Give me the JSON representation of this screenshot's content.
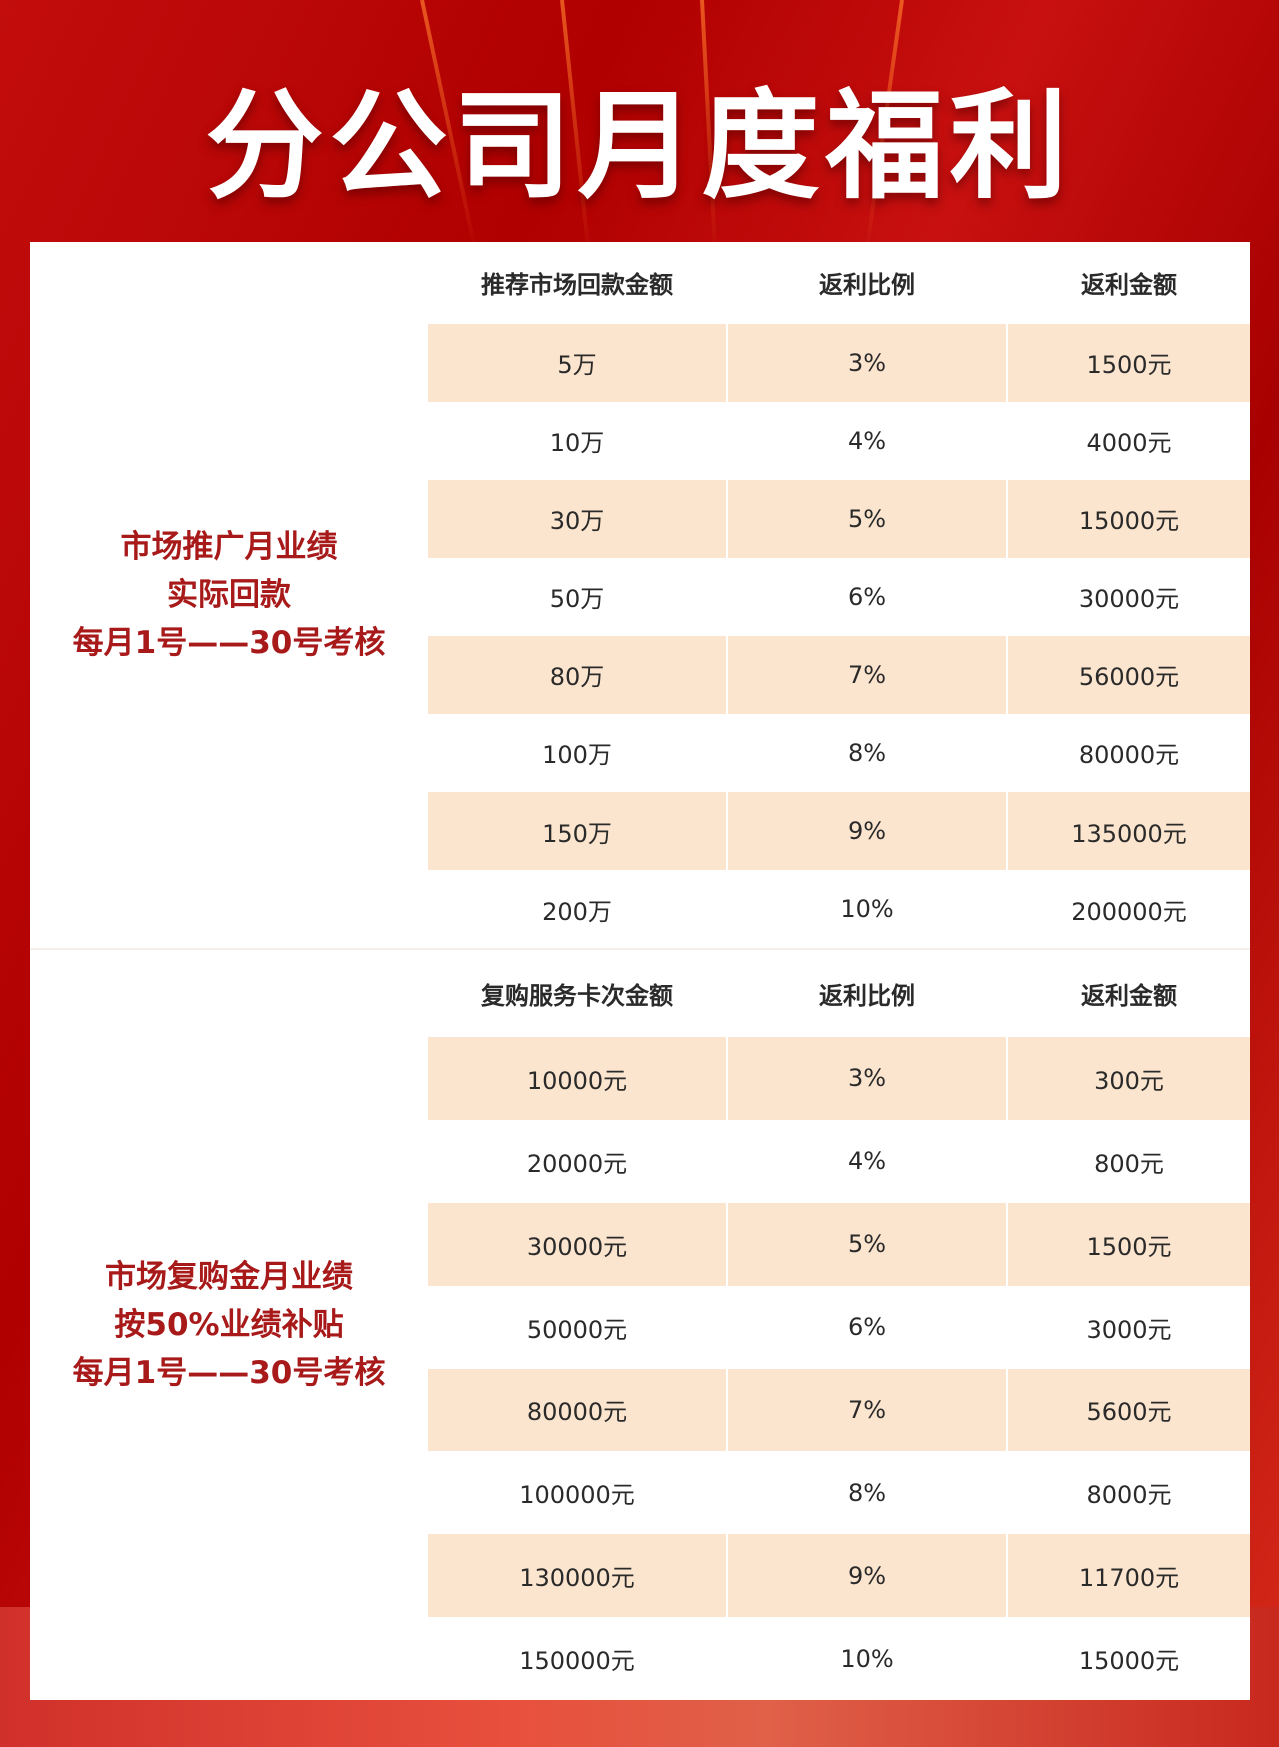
{
  "title": "分公司月度福利",
  "sections": [
    {
      "label_lines": [
        "市场推广月业绩",
        "实际回款",
        "每月1号——30号考核"
      ],
      "headers": [
        "推荐市场回款金额",
        "返利比例",
        "返利金额"
      ],
      "rows": [
        [
          "5万",
          "3%",
          "1500元"
        ],
        [
          "10万",
          "4%",
          "4000元"
        ],
        [
          "30万",
          "5%",
          "15000元"
        ],
        [
          "50万",
          "6%",
          "30000元"
        ],
        [
          "80万",
          "7%",
          "56000元"
        ],
        [
          "100万",
          "8%",
          "80000元"
        ],
        [
          "150万",
          "9%",
          "135000元"
        ],
        [
          "200万",
          "10%",
          "200000元"
        ]
      ]
    },
    {
      "label_lines": [
        "市场复购金月业绩",
        "按50%业绩补贴",
        "每月1号——30号考核"
      ],
      "headers": [
        "复购服务卡次金额",
        "返利比例",
        "返利金额"
      ],
      "rows": [
        [
          "10000元",
          "3%",
          "300元"
        ],
        [
          "20000元",
          "4%",
          "800元"
        ],
        [
          "30000元",
          "5%",
          "1500元"
        ],
        [
          "50000元",
          "6%",
          "3000元"
        ],
        [
          "80000元",
          "7%",
          "5600元"
        ],
        [
          "100000元",
          "8%",
          "8000元"
        ],
        [
          "130000元",
          "9%",
          "11700元"
        ],
        [
          "150000元",
          "10%",
          "15000元"
        ]
      ]
    }
  ],
  "colors": {
    "background": "#b00000",
    "label_text": "#a8191a",
    "alt_row": "#fce5cf",
    "text": "#2a2a2a"
  }
}
